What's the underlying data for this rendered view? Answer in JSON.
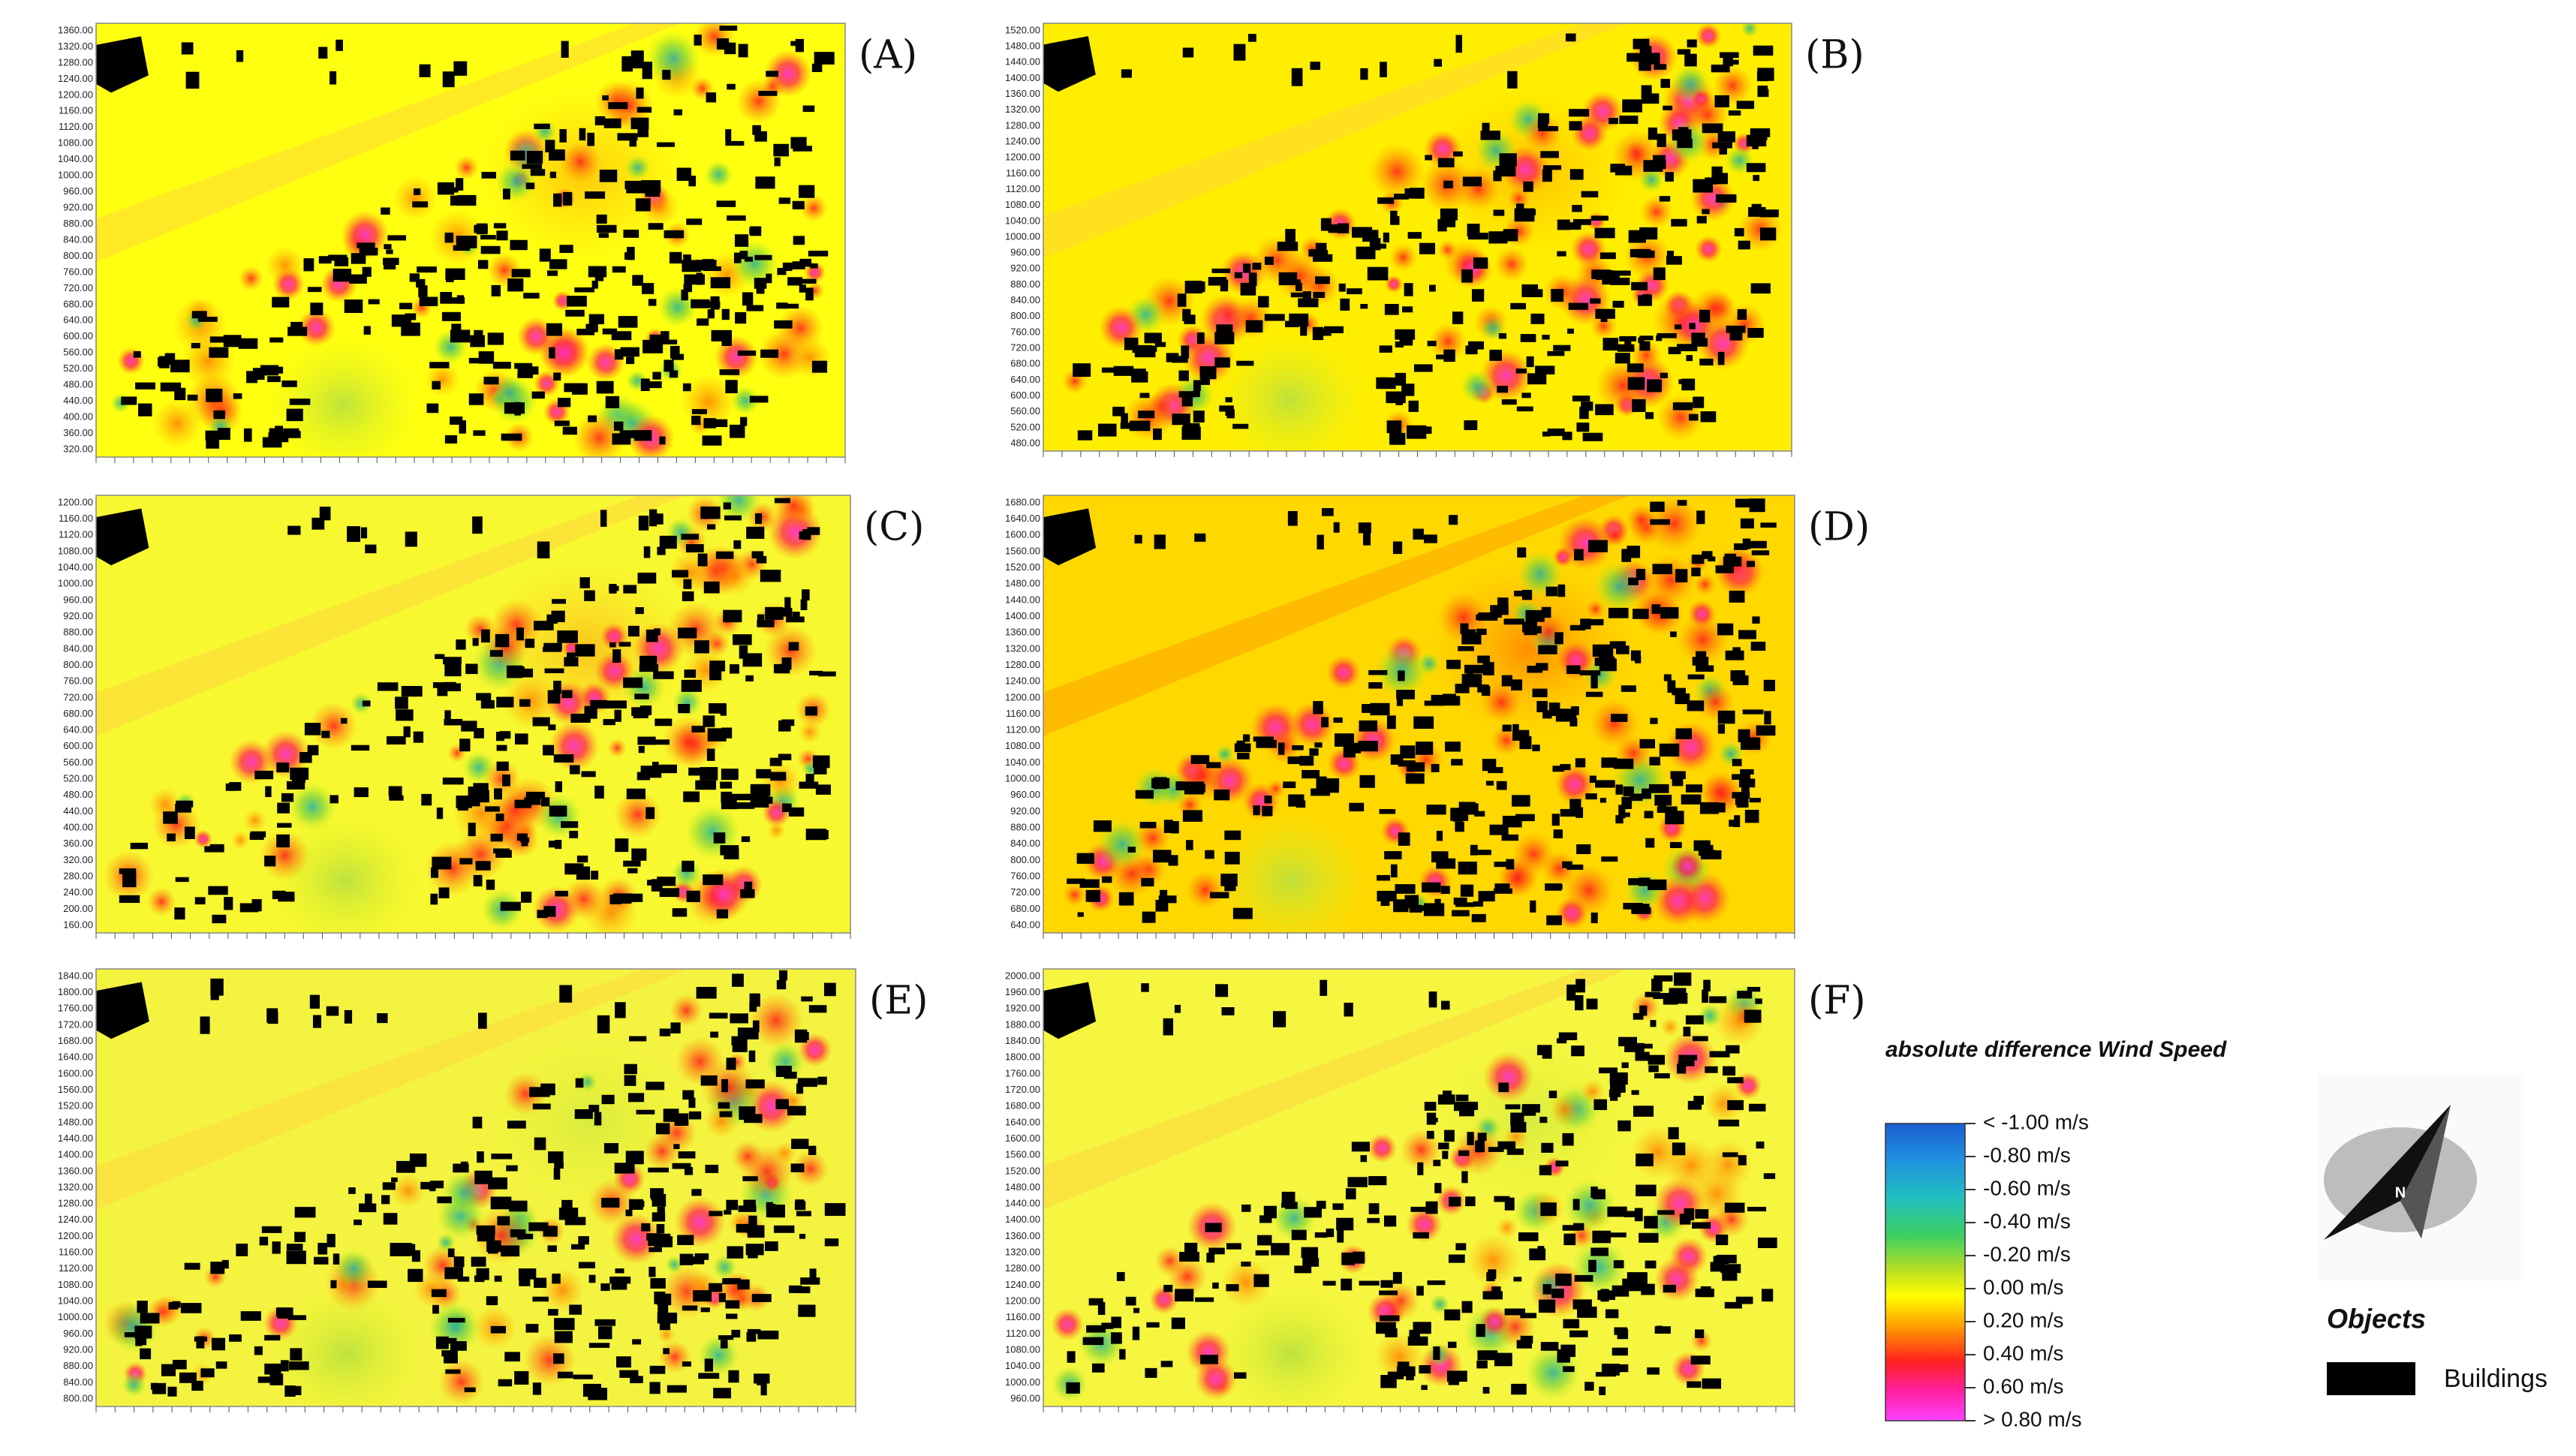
{
  "panels": [
    {
      "label": "(A)",
      "y_ticks": [
        "1360.00",
        "1320.00",
        "1280.00",
        "1240.00",
        "1200.00",
        "1160.00",
        "1120.00",
        "1080.00",
        "1040.00",
        "1000.00",
        "960.00",
        "920.00",
        "880.00",
        "840.00",
        "800.00",
        "760.00",
        "720.00",
        "680.00",
        "640.00",
        "600.00",
        "560.00",
        "520.00",
        "480.00",
        "440.00",
        "400.00",
        "360.00",
        "320.00"
      ]
    },
    {
      "label": "(B)",
      "y_ticks": [
        "1520.00",
        "1480.00",
        "1440.00",
        "1400.00",
        "1360.00",
        "1320.00",
        "1280.00",
        "1240.00",
        "1200.00",
        "1160.00",
        "1120.00",
        "1080.00",
        "1040.00",
        "1000.00",
        "960.00",
        "920.00",
        "880.00",
        "840.00",
        "800.00",
        "760.00",
        "720.00",
        "680.00",
        "640.00",
        "600.00",
        "560.00",
        "520.00",
        "480.00"
      ]
    },
    {
      "label": "(C)",
      "y_ticks": [
        "1200.00",
        "1160.00",
        "1120.00",
        "1080.00",
        "1040.00",
        "1000.00",
        "960.00",
        "920.00",
        "880.00",
        "840.00",
        "800.00",
        "760.00",
        "720.00",
        "680.00",
        "640.00",
        "600.00",
        "560.00",
        "520.00",
        "480.00",
        "440.00",
        "400.00",
        "360.00",
        "320.00",
        "280.00",
        "240.00",
        "200.00",
        "160.00"
      ]
    },
    {
      "label": "(D)",
      "y_ticks": [
        "1680.00",
        "1640.00",
        "1600.00",
        "1560.00",
        "1520.00",
        "1480.00",
        "1440.00",
        "1400.00",
        "1360.00",
        "1320.00",
        "1280.00",
        "1240.00",
        "1200.00",
        "1160.00",
        "1120.00",
        "1080.00",
        "1040.00",
        "1000.00",
        "960.00",
        "920.00",
        "880.00",
        "840.00",
        "800.00",
        "760.00",
        "720.00",
        "680.00",
        "640.00"
      ]
    },
    {
      "label": "(E)",
      "y_ticks": [
        "1840.00",
        "1800.00",
        "1760.00",
        "1720.00",
        "1680.00",
        "1640.00",
        "1600.00",
        "1560.00",
        "1520.00",
        "1480.00",
        "1440.00",
        "1400.00",
        "1360.00",
        "1320.00",
        "1280.00",
        "1240.00",
        "1200.00",
        "1160.00",
        "1120.00",
        "1080.00",
        "1040.00",
        "1000.00",
        "960.00",
        "920.00",
        "880.00",
        "840.00",
        "800.00"
      ]
    },
    {
      "label": "(F)",
      "y_ticks": [
        "2000.00",
        "1960.00",
        "1920.00",
        "1880.00",
        "1840.00",
        "1800.00",
        "1760.00",
        "1720.00",
        "1680.00",
        "1640.00",
        "1600.00",
        "1560.00",
        "1520.00",
        "1480.00",
        "1440.00",
        "1400.00",
        "1360.00",
        "1320.00",
        "1280.00",
        "1240.00",
        "1200.00",
        "1160.00",
        "1120.00",
        "1080.00",
        "1040.00",
        "1000.00",
        "960.00"
      ]
    }
  ],
  "legend": {
    "title": "absolute difference Wind Speed",
    "entries": [
      "< -1.00 m/s",
      "-0.80  m/s",
      "-0.60  m/s",
      "-0.40  m/s",
      "-0.20  m/s",
      "0.00  m/s",
      "0.20  m/s",
      "0.40  m/s",
      "0.60  m/s",
      "> 0.80 m/s"
    ]
  },
  "compass": "N",
  "objects": {
    "title": "Objects",
    "items": [
      "Buildings"
    ]
  }
}
